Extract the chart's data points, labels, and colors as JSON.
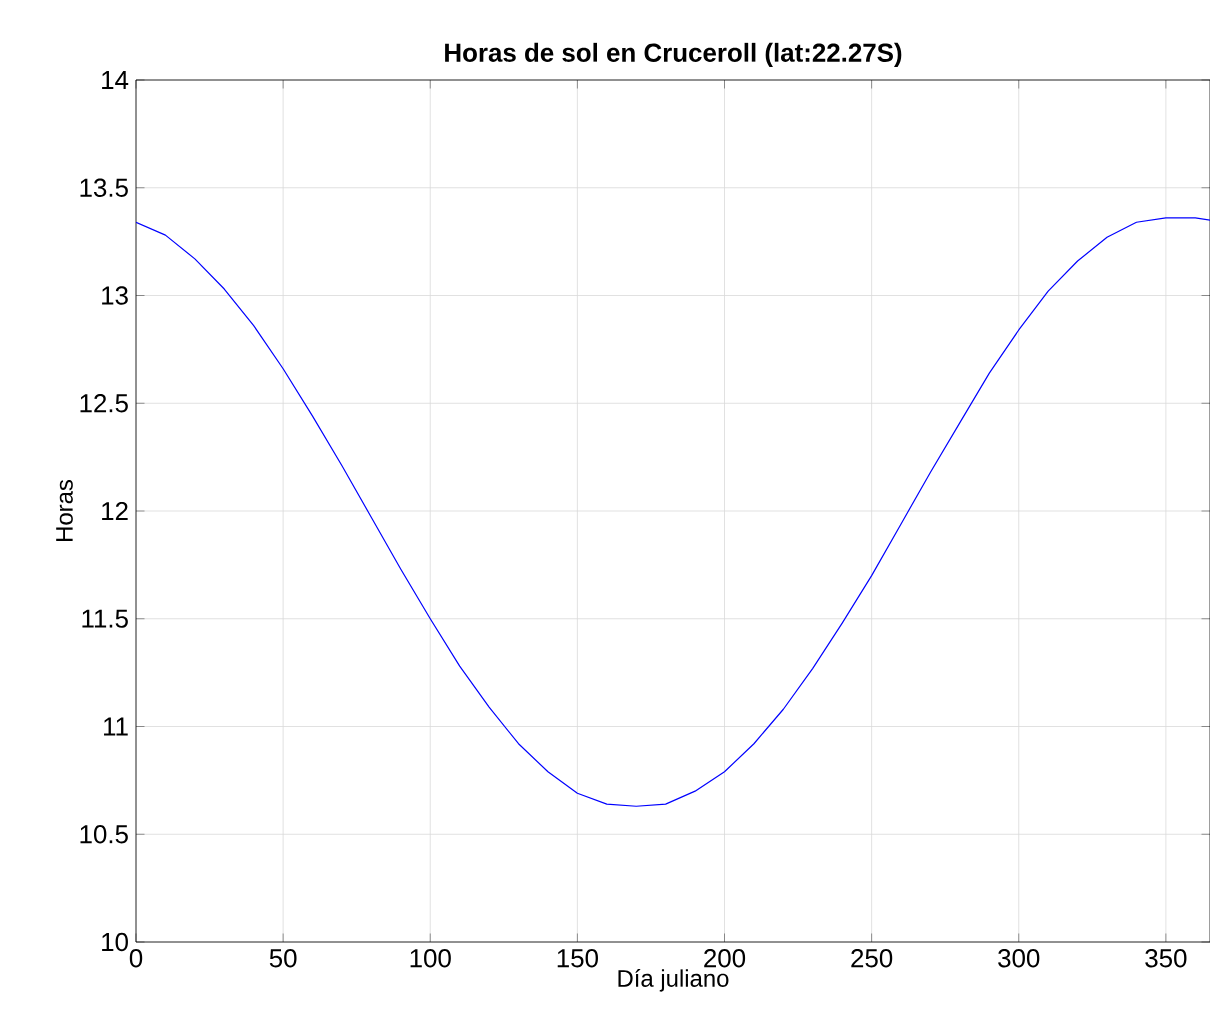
{
  "chart_data": {
    "type": "line",
    "title": "Horas de sol en Cruceroll (lat:22.27S)",
    "xlabel": "Día juliano",
    "ylabel": "Horas",
    "x": [
      0,
      10,
      20,
      30,
      40,
      50,
      60,
      70,
      80,
      90,
      100,
      110,
      120,
      130,
      140,
      150,
      160,
      170,
      180,
      190,
      200,
      210,
      220,
      230,
      240,
      250,
      260,
      270,
      280,
      290,
      300,
      310,
      320,
      330,
      340,
      350,
      360,
      365
    ],
    "series": [
      {
        "color": "#0000ff",
        "values": [
          13.34,
          13.28,
          13.17,
          13.03,
          12.86,
          12.66,
          12.44,
          12.21,
          11.97,
          11.73,
          11.5,
          11.28,
          11.09,
          10.92,
          10.79,
          10.69,
          10.64,
          10.63,
          10.64,
          10.7,
          10.79,
          10.92,
          11.08,
          11.27,
          11.48,
          11.7,
          11.94,
          12.18,
          12.41,
          12.64,
          12.84,
          13.02,
          13.16,
          13.27,
          13.34,
          13.36,
          13.36,
          13.35
        ]
      }
    ],
    "xlim": [
      0,
      365
    ],
    "ylim": [
      10,
      14
    ],
    "xticks": [
      0,
      50,
      100,
      150,
      200,
      250,
      300,
      350
    ],
    "yticks": [
      10,
      10.5,
      11,
      11.5,
      12,
      12.5,
      13,
      13.5,
      14
    ],
    "grid": true,
    "marker": "none",
    "line_style": "solid"
  }
}
